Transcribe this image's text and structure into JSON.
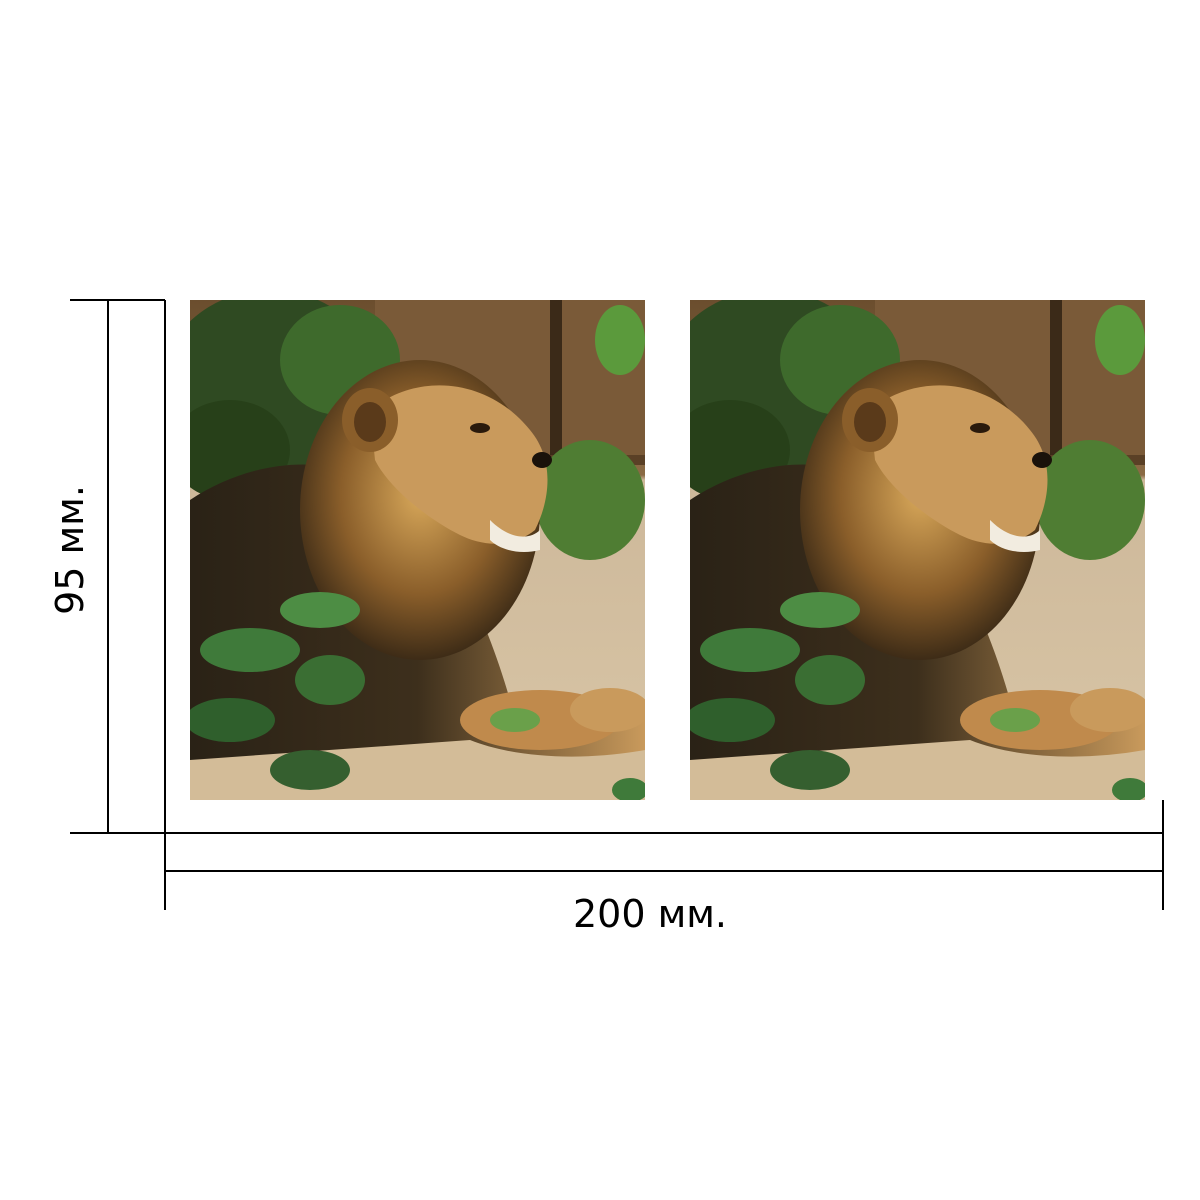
{
  "dimensions": {
    "height_label": "95 мм.",
    "width_label": "200 мм."
  },
  "photos": [
    {
      "subject": "lion-photo"
    },
    {
      "subject": "lion-photo"
    }
  ],
  "colors": {
    "line": "#000000",
    "background": "#ffffff"
  }
}
